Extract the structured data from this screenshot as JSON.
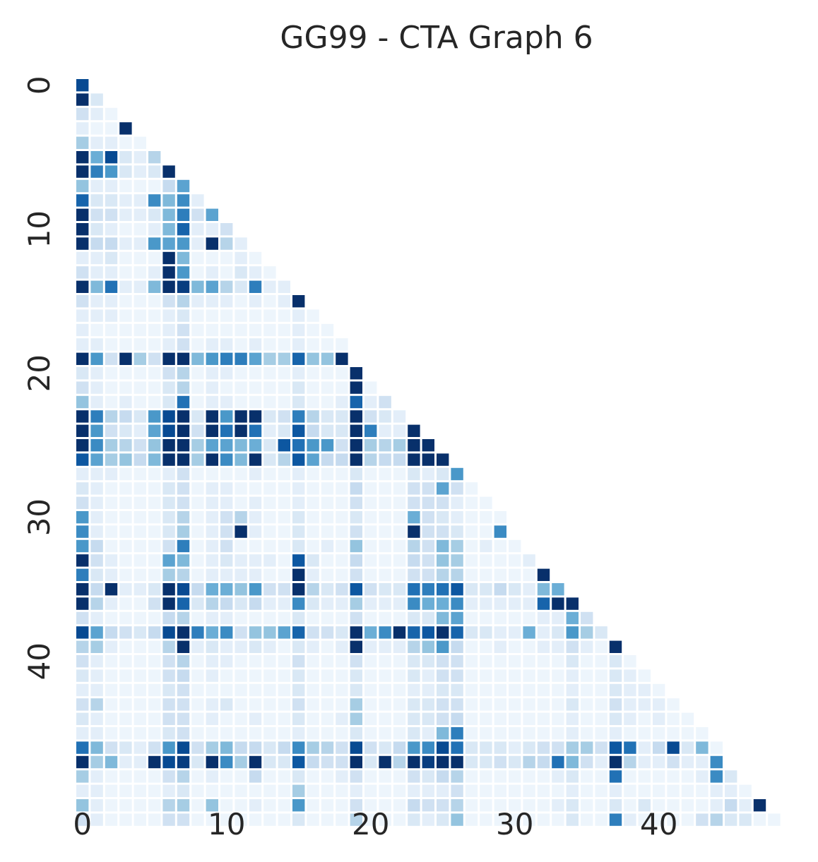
{
  "chart_data": {
    "type": "heatmap",
    "title": "GG99 - CTA Graph 6",
    "xlabel": "",
    "ylabel": "",
    "n": 50,
    "mask": "lower-triangle",
    "colormap": "Blues",
    "value_range": [
      0,
      1
    ],
    "x_ticks": [
      0,
      10,
      20,
      30,
      40
    ],
    "y_ticks": [
      0,
      10,
      20,
      30,
      40
    ],
    "x_tick_labels": [
      "0",
      "10",
      "20",
      "30",
      "40"
    ],
    "y_tick_labels": [
      "0",
      "10",
      "20",
      "30",
      "40"
    ],
    "grid": false,
    "colorbar": false,
    "rows": [
      [
        0.9
      ],
      [
        1.0,
        0.15
      ],
      [
        0.2,
        0.1,
        0.05
      ],
      [
        0.1,
        0.05,
        0.05,
        1.0
      ],
      [
        0.35,
        0.1,
        0.1,
        0.05,
        0.05
      ],
      [
        1.0,
        0.5,
        0.9,
        0.15,
        0.1,
        0.3
      ],
      [
        1.0,
        0.7,
        0.6,
        0.15,
        0.1,
        0.15,
        1.0
      ],
      [
        0.4,
        0.1,
        0.1,
        0.05,
        0.05,
        0.05,
        0.25,
        0.55
      ],
      [
        0.8,
        0.15,
        0.15,
        0.1,
        0.1,
        0.65,
        0.45,
        0.65,
        0.1
      ],
      [
        1.0,
        0.2,
        0.2,
        0.1,
        0.1,
        0.15,
        0.45,
        0.7,
        0.2,
        0.55
      ],
      [
        1.0,
        0.15,
        0.1,
        0.05,
        0.05,
        0.1,
        0.45,
        0.8,
        0.1,
        0.1,
        0.2
      ],
      [
        1.0,
        0.25,
        0.25,
        0.1,
        0.1,
        0.6,
        0.55,
        0.6,
        0.1,
        1.0,
        0.3,
        0.1
      ],
      [
        0.1,
        0.1,
        0.15,
        0.05,
        0.05,
        0.05,
        1.0,
        0.45,
        0.05,
        0.05,
        0.05,
        0.1,
        0.05
      ],
      [
        0.2,
        0.1,
        0.1,
        0.05,
        0.05,
        0.1,
        1.0,
        0.6,
        0.05,
        0.1,
        0.05,
        0.15,
        0.1,
        0.05
      ],
      [
        1.0,
        0.45,
        0.75,
        0.1,
        0.1,
        0.45,
        1.0,
        0.95,
        0.45,
        0.55,
        0.3,
        0.15,
        0.7,
        0.1,
        0.1
      ],
      [
        0.2,
        0.1,
        0.1,
        0.05,
        0.05,
        0.05,
        0.2,
        0.3,
        0.1,
        0.1,
        0.1,
        0.05,
        0.1,
        0.05,
        0.1,
        1.0
      ],
      [
        0.1,
        0.1,
        0.1,
        0.05,
        0.05,
        0.05,
        0.1,
        0.15,
        0.05,
        0.05,
        0.05,
        0.05,
        0.05,
        0.05,
        0.05,
        0.1,
        0.05
      ],
      [
        0.1,
        0.05,
        0.05,
        0.05,
        0.05,
        0.05,
        0.1,
        0.2,
        0.05,
        0.05,
        0.05,
        0.05,
        0.05,
        0.05,
        0.05,
        0.1,
        0.05,
        0.05
      ],
      [
        0.1,
        0.1,
        0.05,
        0.05,
        0.05,
        0.05,
        0.1,
        0.2,
        0.05,
        0.1,
        0.1,
        0.05,
        0.1,
        0.05,
        0.05,
        0.1,
        0.05,
        0.05,
        0.05
      ],
      [
        1.0,
        0.6,
        0.2,
        1.0,
        0.35,
        0.2,
        1.0,
        1.0,
        0.45,
        0.6,
        0.7,
        0.7,
        0.55,
        0.35,
        0.35,
        0.8,
        0.4,
        0.4,
        1.0
      ],
      [
        0.15,
        0.1,
        0.05,
        0.05,
        0.05,
        0.05,
        0.2,
        0.3,
        0.05,
        0.1,
        0.1,
        0.05,
        0.05,
        0.05,
        0.05,
        0.1,
        0.05,
        0.05,
        0.05,
        1.0
      ],
      [
        0.2,
        0.1,
        0.05,
        0.05,
        0.05,
        0.05,
        0.15,
        0.3,
        0.05,
        0.1,
        0.05,
        0.05,
        0.05,
        0.05,
        0.05,
        0.15,
        0.05,
        0.05,
        0.05,
        1.0,
        0.05
      ],
      [
        0.4,
        0.1,
        0.05,
        0.1,
        0.05,
        0.05,
        0.15,
        0.75,
        0.05,
        0.1,
        0.1,
        0.05,
        0.05,
        0.05,
        0.05,
        0.15,
        0.05,
        0.05,
        0.1,
        0.8,
        0.1,
        0.2
      ],
      [
        1.0,
        0.7,
        0.3,
        0.25,
        0.15,
        0.6,
        0.9,
        1.0,
        0.15,
        1.0,
        0.6,
        1.0,
        1.0,
        0.15,
        0.2,
        0.7,
        0.3,
        0.15,
        0.15,
        1.0,
        0.2,
        0.15,
        0.1
      ],
      [
        1.0,
        0.6,
        0.2,
        0.15,
        0.1,
        0.55,
        0.9,
        1.0,
        0.2,
        1.0,
        0.75,
        1.0,
        0.75,
        0.1,
        0.15,
        0.85,
        0.25,
        0.15,
        0.15,
        1.0,
        0.7,
        0.1,
        0.1,
        1.0
      ],
      [
        1.0,
        0.65,
        0.35,
        0.3,
        0.2,
        0.4,
        1.0,
        1.0,
        0.35,
        0.55,
        0.55,
        0.45,
        0.5,
        0.15,
        0.85,
        0.75,
        0.6,
        0.6,
        0.2,
        1.0,
        0.35,
        0.3,
        0.35,
        1.0,
        1.0
      ],
      [
        0.85,
        0.55,
        0.35,
        0.4,
        0.25,
        0.45,
        1.0,
        1.0,
        0.35,
        1.0,
        0.65,
        0.45,
        1.0,
        0.15,
        0.3,
        0.85,
        0.55,
        0.25,
        0.25,
        1.0,
        0.3,
        0.25,
        0.25,
        1.0,
        1.0,
        1.0
      ],
      [
        0.1,
        0.1,
        0.1,
        0.05,
        0.05,
        0.05,
        0.1,
        0.2,
        0.05,
        0.05,
        0.05,
        0.05,
        0.1,
        0.05,
        0.05,
        0.1,
        0.05,
        0.05,
        0.05,
        0.15,
        0.05,
        0.05,
        0.05,
        0.15,
        0.1,
        0.15,
        0.6
      ],
      [
        0.15,
        0.1,
        0.05,
        0.05,
        0.05,
        0.05,
        0.15,
        0.2,
        0.05,
        0.1,
        0.1,
        0.05,
        0.05,
        0.05,
        0.05,
        0.1,
        0.05,
        0.05,
        0.05,
        0.25,
        0.05,
        0.05,
        0.05,
        0.2,
        0.2,
        0.55,
        0.2,
        0.05
      ],
      [
        0.2,
        0.1,
        0.05,
        0.05,
        0.05,
        0.05,
        0.15,
        0.2,
        0.05,
        0.1,
        0.1,
        0.05,
        0.1,
        0.05,
        0.05,
        0.1,
        0.05,
        0.05,
        0.05,
        0.2,
        0.05,
        0.05,
        0.05,
        0.2,
        0.2,
        0.2,
        0.1,
        0.05,
        0.05
      ],
      [
        0.6,
        0.1,
        0.05,
        0.05,
        0.05,
        0.05,
        0.15,
        0.3,
        0.05,
        0.1,
        0.2,
        0.3,
        0.1,
        0.05,
        0.05,
        0.15,
        0.05,
        0.05,
        0.05,
        0.15,
        0.05,
        0.05,
        0.05,
        0.5,
        0.2,
        0.15,
        0.1,
        0.05,
        0.05,
        0.05
      ],
      [
        0.65,
        0.1,
        0.05,
        0.05,
        0.05,
        0.05,
        0.15,
        0.35,
        0.05,
        0.1,
        0.2,
        1.0,
        0.1,
        0.05,
        0.05,
        0.15,
        0.05,
        0.05,
        0.05,
        0.2,
        0.05,
        0.05,
        0.05,
        1.0,
        0.2,
        0.2,
        0.15,
        0.05,
        0.05,
        0.65
      ],
      [
        0.6,
        0.25,
        0.05,
        0.05,
        0.05,
        0.05,
        0.2,
        0.7,
        0.05,
        0.1,
        0.2,
        0.05,
        0.05,
        0.05,
        0.05,
        0.15,
        0.05,
        0.1,
        0.05,
        0.4,
        0.05,
        0.05,
        0.05,
        0.3,
        0.2,
        0.45,
        0.35,
        0.05,
        0.1,
        0.05,
        0.05
      ],
      [
        1.0,
        0.2,
        0.1,
        0.05,
        0.05,
        0.05,
        0.55,
        0.45,
        0.05,
        0.1,
        0.15,
        0.1,
        0.1,
        0.1,
        0.05,
        0.85,
        0.15,
        0.05,
        0.05,
        0.25,
        0.05,
        0.05,
        0.05,
        0.25,
        0.2,
        0.4,
        0.35,
        0.05,
        0.05,
        0.05,
        0.05,
        0.1
      ],
      [
        0.7,
        0.15,
        0.1,
        0.05,
        0.05,
        0.05,
        0.35,
        0.3,
        0.05,
        0.1,
        0.1,
        0.1,
        0.1,
        0.05,
        0.05,
        1.0,
        0.1,
        0.05,
        0.05,
        0.2,
        0.05,
        0.05,
        0.05,
        0.2,
        0.2,
        0.3,
        0.3,
        0.05,
        0.05,
        0.05,
        0.05,
        0.05,
        1.0
      ],
      [
        1.0,
        0.25,
        1.0,
        0.1,
        0.1,
        0.15,
        1.0,
        0.9,
        0.25,
        0.5,
        0.5,
        0.4,
        0.6,
        0.2,
        0.2,
        1.0,
        0.3,
        0.15,
        0.2,
        0.85,
        0.2,
        0.15,
        0.15,
        0.75,
        0.7,
        0.75,
        0.85,
        0.15,
        0.15,
        0.25,
        0.15,
        0.1,
        0.45,
        0.5
      ],
      [
        1.0,
        0.3,
        0.1,
        0.05,
        0.05,
        0.2,
        1.0,
        0.8,
        0.15,
        0.3,
        0.25,
        0.15,
        0.25,
        0.1,
        0.1,
        0.65,
        0.15,
        0.1,
        0.1,
        0.35,
        0.1,
        0.1,
        0.1,
        0.65,
        0.5,
        0.5,
        0.65,
        0.1,
        0.1,
        0.1,
        0.1,
        0.1,
        0.8,
        1.0,
        1.0
      ],
      [
        0.2,
        0.1,
        0.05,
        0.05,
        0.05,
        0.05,
        0.25,
        0.3,
        0.05,
        0.1,
        0.1,
        0.05,
        0.05,
        0.05,
        0.05,
        0.15,
        0.05,
        0.05,
        0.05,
        0.2,
        0.05,
        0.05,
        0.05,
        0.15,
        0.15,
        0.45,
        0.55,
        0.05,
        0.05,
        0.05,
        0.05,
        0.05,
        0.1,
        0.1,
        0.5,
        0.2
      ],
      [
        0.9,
        0.55,
        0.25,
        0.2,
        0.15,
        0.25,
        0.9,
        1.0,
        0.7,
        0.5,
        0.65,
        0.2,
        0.4,
        0.4,
        0.55,
        0.8,
        0.2,
        0.2,
        0.15,
        1.0,
        0.5,
        0.65,
        1.0,
        0.8,
        0.85,
        1.0,
        0.8,
        0.15,
        0.15,
        0.1,
        0.1,
        0.5,
        0.1,
        0.15,
        0.6,
        0.35,
        0.15
      ],
      [
        0.3,
        0.35,
        0.1,
        0.05,
        0.05,
        0.05,
        0.3,
        1.0,
        0.1,
        0.15,
        0.1,
        0.1,
        0.15,
        0.1,
        0.05,
        0.15,
        0.1,
        0.05,
        0.1,
        1.0,
        0.1,
        0.1,
        0.1,
        0.3,
        0.4,
        0.6,
        0.25,
        0.05,
        0.05,
        0.1,
        0.05,
        0.05,
        0.1,
        0.1,
        0.2,
        0.1,
        0.05,
        1.0
      ],
      [
        0.2,
        0.1,
        0.05,
        0.05,
        0.05,
        0.05,
        0.2,
        0.3,
        0.05,
        0.1,
        0.1,
        0.05,
        0.05,
        0.05,
        0.05,
        0.2,
        0.05,
        0.05,
        0.05,
        0.2,
        0.05,
        0.05,
        0.05,
        0.15,
        0.15,
        0.2,
        0.2,
        0.05,
        0.05,
        0.05,
        0.05,
        0.05,
        0.05,
        0.05,
        0.15,
        0.05,
        0.05,
        0.15,
        0.05
      ],
      [
        0.15,
        0.1,
        0.05,
        0.05,
        0.05,
        0.05,
        0.2,
        0.25,
        0.05,
        0.1,
        0.05,
        0.05,
        0.05,
        0.05,
        0.05,
        0.15,
        0.05,
        0.05,
        0.05,
        0.15,
        0.05,
        0.05,
        0.05,
        0.15,
        0.1,
        0.2,
        0.2,
        0.05,
        0.05,
        0.05,
        0.05,
        0.05,
        0.05,
        0.05,
        0.1,
        0.05,
        0.05,
        0.15,
        0.1,
        0.05
      ],
      [
        0.1,
        0.1,
        0.05,
        0.05,
        0.05,
        0.05,
        0.15,
        0.2,
        0.05,
        0.05,
        0.05,
        0.05,
        0.05,
        0.05,
        0.05,
        0.15,
        0.05,
        0.05,
        0.05,
        0.15,
        0.05,
        0.05,
        0.05,
        0.1,
        0.1,
        0.15,
        0.15,
        0.05,
        0.05,
        0.05,
        0.05,
        0.05,
        0.05,
        0.05,
        0.1,
        0.05,
        0.05,
        0.15,
        0.1,
        0.1,
        0.05
      ],
      [
        0.2,
        0.3,
        0.05,
        0.05,
        0.05,
        0.05,
        0.2,
        0.2,
        0.05,
        0.1,
        0.15,
        0.05,
        0.05,
        0.05,
        0.05,
        0.2,
        0.05,
        0.05,
        0.05,
        0.35,
        0.05,
        0.05,
        0.05,
        0.15,
        0.15,
        0.2,
        0.2,
        0.05,
        0.05,
        0.05,
        0.05,
        0.05,
        0.05,
        0.05,
        0.15,
        0.05,
        0.05,
        0.2,
        0.1,
        0.1,
        0.1,
        0.05
      ],
      [
        0.15,
        0.1,
        0.05,
        0.05,
        0.05,
        0.05,
        0.2,
        0.2,
        0.05,
        0.1,
        0.05,
        0.05,
        0.1,
        0.05,
        0.05,
        0.15,
        0.05,
        0.05,
        0.1,
        0.35,
        0.05,
        0.05,
        0.05,
        0.15,
        0.15,
        0.2,
        0.25,
        0.05,
        0.05,
        0.05,
        0.05,
        0.05,
        0.05,
        0.05,
        0.1,
        0.05,
        0.05,
        0.15,
        0.1,
        0.05,
        0.1,
        0.05,
        0.05
      ],
      [
        0.1,
        0.1,
        0.05,
        0.05,
        0.05,
        0.05,
        0.15,
        0.2,
        0.05,
        0.05,
        0.05,
        0.05,
        0.05,
        0.05,
        0.05,
        0.1,
        0.05,
        0.05,
        0.05,
        0.15,
        0.05,
        0.05,
        0.05,
        0.15,
        0.1,
        0.45,
        0.7,
        0.05,
        0.05,
        0.05,
        0.05,
        0.05,
        0.05,
        0.05,
        0.1,
        0.05,
        0.05,
        0.1,
        0.05,
        0.05,
        0.05,
        0.05,
        0.05,
        0.05
      ],
      [
        0.75,
        0.45,
        0.2,
        0.15,
        0.1,
        0.2,
        0.6,
        0.9,
        0.2,
        0.35,
        0.45,
        0.25,
        0.25,
        0.15,
        0.25,
        0.65,
        0.35,
        0.3,
        0.2,
        0.9,
        0.2,
        0.15,
        0.25,
        0.6,
        0.65,
        0.9,
        0.75,
        0.15,
        0.15,
        0.15,
        0.1,
        0.15,
        0.2,
        0.2,
        0.35,
        0.35,
        0.2,
        0.85,
        0.75,
        0.1,
        0.25,
        0.9,
        0.15,
        0.45,
        0.05
      ],
      [
        1.0,
        0.35,
        0.45,
        0.1,
        0.1,
        1.0,
        0.9,
        0.95,
        0.15,
        1.0,
        0.65,
        0.35,
        1.0,
        0.15,
        0.15,
        0.85,
        0.25,
        0.2,
        0.2,
        1.0,
        0.15,
        1.0,
        0.3,
        1.0,
        0.95,
        1.0,
        1.0,
        0.15,
        0.15,
        0.2,
        0.15,
        0.3,
        0.25,
        0.75,
        0.45,
        0.2,
        0.1,
        1.0,
        0.3,
        0.1,
        0.1,
        0.2,
        0.1,
        0.1,
        0.65
      ],
      [
        0.35,
        0.1,
        0.05,
        0.05,
        0.05,
        0.05,
        0.2,
        0.3,
        0.05,
        0.1,
        0.05,
        0.05,
        0.25,
        0.05,
        0.05,
        0.15,
        0.05,
        0.05,
        0.1,
        0.2,
        0.05,
        0.05,
        0.05,
        0.2,
        0.15,
        0.25,
        0.3,
        0.05,
        0.05,
        0.05,
        0.05,
        0.05,
        0.05,
        0.1,
        0.15,
        0.05,
        0.05,
        0.75,
        0.05,
        0.05,
        0.05,
        0.05,
        0.05,
        0.1,
        0.65,
        0.15
      ],
      [
        0.1,
        0.1,
        0.05,
        0.05,
        0.05,
        0.05,
        0.1,
        0.15,
        0.05,
        0.05,
        0.05,
        0.05,
        0.05,
        0.05,
        0.05,
        0.35,
        0.05,
        0.05,
        0.05,
        0.1,
        0.05,
        0.05,
        0.05,
        0.1,
        0.1,
        0.1,
        0.2,
        0.05,
        0.05,
        0.05,
        0.05,
        0.05,
        0.05,
        0.05,
        0.1,
        0.05,
        0.05,
        0.1,
        0.05,
        0.05,
        0.05,
        0.05,
        0.05,
        0.05,
        0.1,
        0.1,
        0.05
      ],
      [
        0.4,
        0.1,
        0.05,
        0.05,
        0.05,
        0.05,
        0.3,
        0.35,
        0.05,
        0.4,
        0.05,
        0.05,
        0.1,
        0.05,
        0.05,
        0.6,
        0.05,
        0.05,
        0.05,
        0.2,
        0.05,
        0.05,
        0.05,
        0.25,
        0.2,
        0.2,
        0.3,
        0.05,
        0.05,
        0.05,
        0.05,
        0.05,
        0.05,
        0.1,
        0.15,
        0.05,
        0.05,
        0.15,
        0.05,
        0.15,
        0.05,
        0.05,
        0.05,
        0.05,
        0.1,
        0.25,
        0.1,
        1.0
      ],
      [
        0.2,
        0.1,
        0.05,
        0.05,
        0.05,
        0.05,
        0.2,
        0.2,
        0.05,
        0.05,
        0.05,
        0.05,
        0.05,
        0.05,
        0.05,
        0.15,
        0.05,
        0.05,
        0.05,
        0.3,
        0.05,
        0.05,
        0.05,
        0.15,
        0.1,
        0.15,
        0.4,
        0.05,
        0.05,
        0.05,
        0.05,
        0.05,
        0.05,
        0.05,
        0.15,
        0.05,
        0.05,
        0.7,
        0.1,
        0.05,
        0.05,
        0.05,
        0.05,
        0.2,
        0.3,
        0.15,
        0.15,
        0.05,
        0.05
      ]
    ]
  }
}
